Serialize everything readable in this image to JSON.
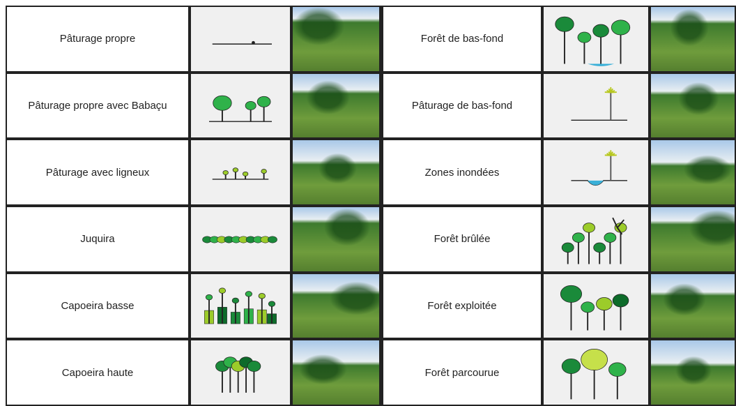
{
  "table": {
    "left": [
      "Pâturage propre",
      "Pâturage propre avec Babaçu",
      "Pâturage avec ligneux",
      "Juquira",
      "Capoeira basse",
      "Capoeira haute"
    ],
    "right": [
      "Forêt de bas-fond",
      "Pâturage de bas-fond",
      "Zones inondées",
      "Forêt brûlée",
      "Forêt exploitée",
      "Forêt parcourue"
    ]
  }
}
